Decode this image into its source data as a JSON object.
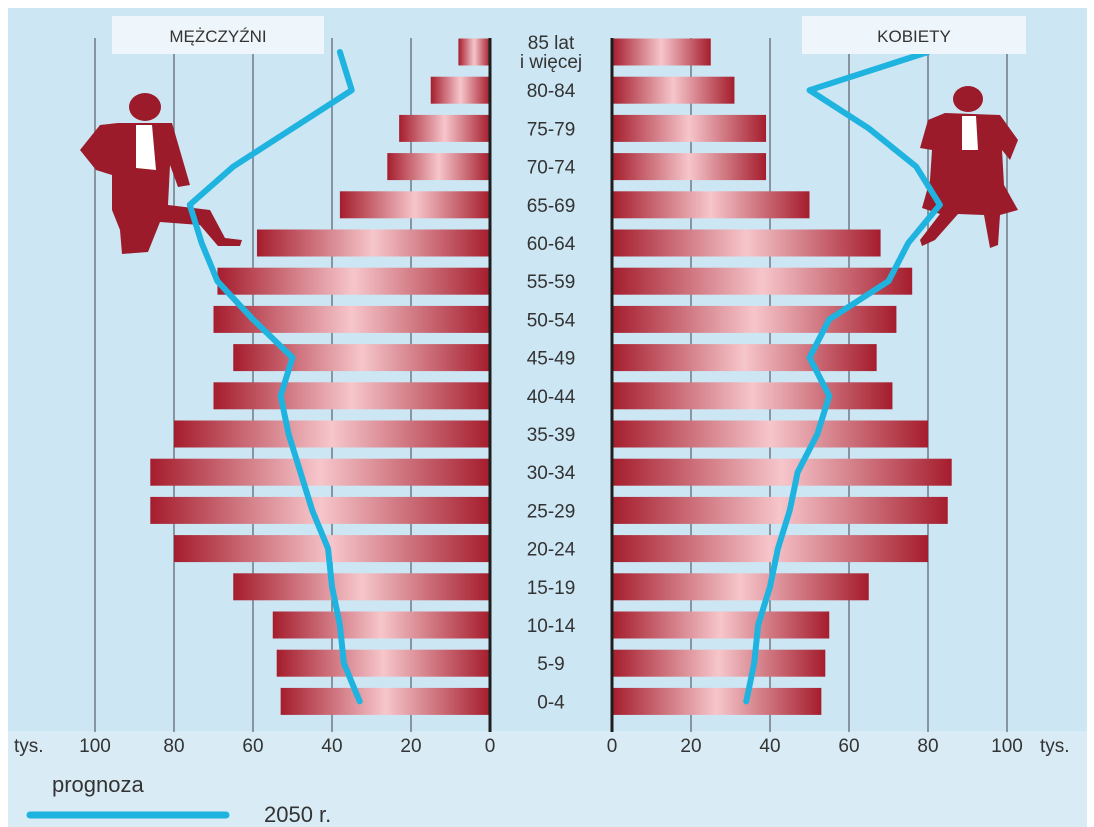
{
  "chart_data": {
    "type": "bar",
    "title": "",
    "categories": [
      "85 lat i więcej",
      "80-84",
      "75-79",
      "70-74",
      "65-69",
      "60-64",
      "55-59",
      "50-54",
      "45-49",
      "40-44",
      "35-39",
      "30-34",
      "25-29",
      "20-24",
      "15-19",
      "10-14",
      "5-9",
      "0-4"
    ],
    "age_labels": [
      {
        "line1": "85 lat",
        "line2": "i więcej"
      },
      {
        "line1": "80-84"
      },
      {
        "line1": "75-79"
      },
      {
        "line1": "70-74"
      },
      {
        "line1": "65-69"
      },
      {
        "line1": "60-64"
      },
      {
        "line1": "55-59"
      },
      {
        "line1": "50-54"
      },
      {
        "line1": "45-49"
      },
      {
        "line1": "40-44"
      },
      {
        "line1": "35-39"
      },
      {
        "line1": "30-34"
      },
      {
        "line1": "25-29"
      },
      {
        "line1": "20-24"
      },
      {
        "line1": "15-19"
      },
      {
        "line1": "10-14"
      },
      {
        "line1": "5-9"
      },
      {
        "line1": "0-4"
      }
    ],
    "series": [
      {
        "name": "MĘŻCZYŹNI",
        "values": [
          8,
          15,
          23,
          26,
          38,
          59,
          69,
          70,
          65,
          70,
          80,
          86,
          86,
          80,
          65,
          55,
          54,
          53
        ]
      },
      {
        "name": "KOBIETY",
        "values": [
          25,
          31,
          39,
          39,
          50,
          68,
          76,
          72,
          67,
          71,
          80,
          86,
          85,
          80,
          65,
          55,
          54,
          53
        ]
      }
    ],
    "forecast": {
      "label": "prognoza",
      "year_label": "2050 r.",
      "male": [
        38,
        35,
        50,
        65,
        76,
        73,
        69,
        60,
        50,
        53,
        51,
        48,
        45,
        41,
        40,
        38,
        37,
        33
      ],
      "female": [
        80,
        50,
        65,
        77,
        83,
        75,
        70,
        55,
        50,
        55,
        52,
        47,
        45,
        42,
        40,
        37,
        36,
        34
      ]
    },
    "x_axis": {
      "unit": "tys.",
      "ticks_left": [
        "100",
        "80",
        "60",
        "40",
        "20",
        "0"
      ],
      "ticks_right": [
        "0",
        "20",
        "40",
        "60",
        "80",
        "100"
      ],
      "range": [
        0,
        100
      ]
    },
    "grid": true,
    "colors": {
      "background": "#cde6f4",
      "bar_dark": "#a51d2d",
      "bar_light": "#f6c6cb",
      "forecast_line": "#1fb3e0",
      "figure": "#9b1b2a",
      "grid": "#6e7a84",
      "axis": "#1e1e1e"
    },
    "icons": [
      "man-figure-icon",
      "woman-figure-icon"
    ]
  },
  "headers": {
    "male": "MĘŻCZYŹNI",
    "female": "KOBIETY"
  },
  "units": {
    "left": "tys.",
    "right": "tys."
  },
  "legend": {
    "label": "prognoza",
    "year": "2050 r."
  }
}
